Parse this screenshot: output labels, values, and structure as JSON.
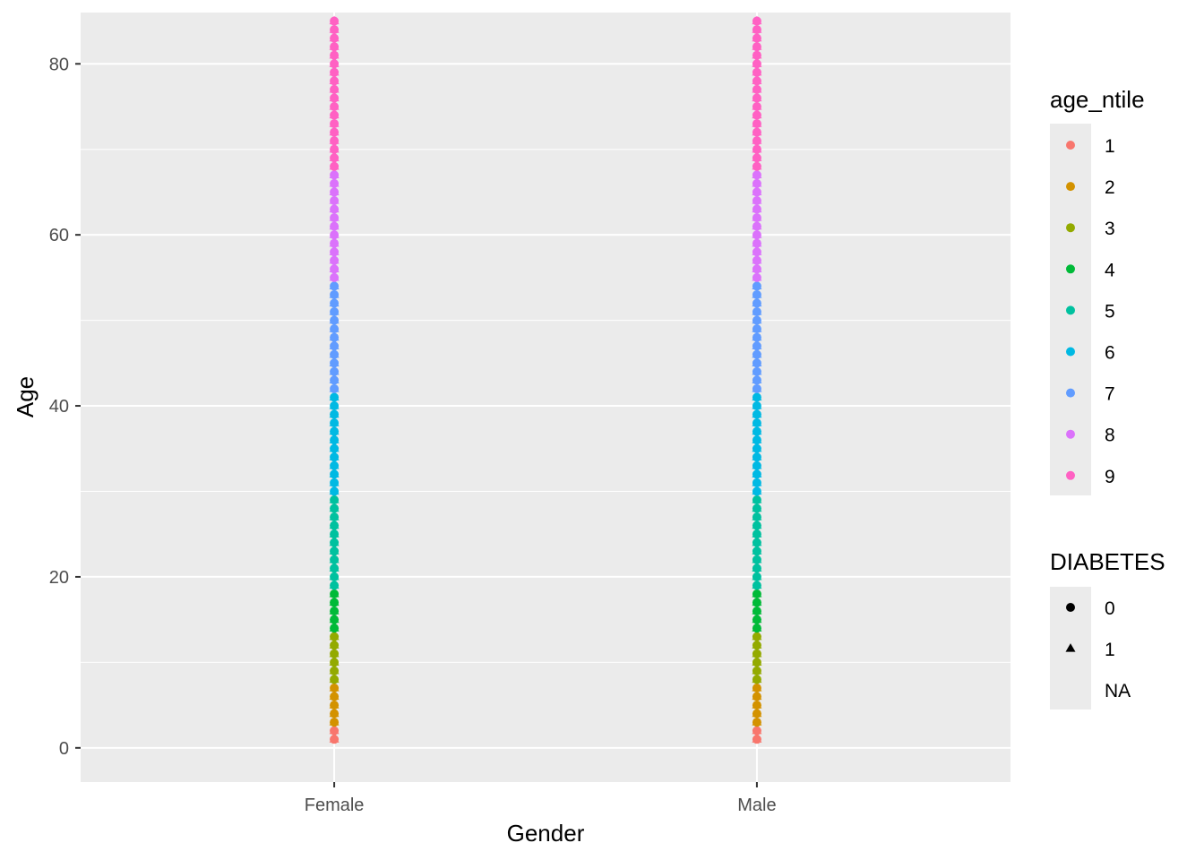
{
  "chart_data": {
    "type": "scatter",
    "title": "",
    "xlabel": "Gender",
    "ylabel": "Age",
    "categories": [
      "Female",
      "Male"
    ],
    "ylim": [
      -4,
      86
    ],
    "yticks": [
      0,
      20,
      40,
      60,
      80
    ],
    "ytick_labels": [
      "0",
      "20",
      "40",
      "60",
      "80"
    ],
    "grid": true,
    "x_range": [
      1,
      85
    ],
    "ntile_ranges": [
      {
        "ntile": "1",
        "min": 1,
        "max": 2
      },
      {
        "ntile": "2",
        "min": 3,
        "max": 7
      },
      {
        "ntile": "3",
        "min": 8,
        "max": 13
      },
      {
        "ntile": "4",
        "min": 14,
        "max": 18
      },
      {
        "ntile": "5",
        "min": 19,
        "max": 29
      },
      {
        "ntile": "6",
        "min": 30,
        "max": 41
      },
      {
        "ntile": "7",
        "min": 42,
        "max": 54
      },
      {
        "ntile": "8",
        "min": 55,
        "max": 67
      },
      {
        "ntile": "9",
        "min": 68,
        "max": 85
      }
    ],
    "legend_placement": "right",
    "legends": [
      {
        "title": "age_ntile",
        "items": [
          {
            "label": "1",
            "color": "#F8766D"
          },
          {
            "label": "2",
            "color": "#D39200"
          },
          {
            "label": "3",
            "color": "#93AA00"
          },
          {
            "label": "4",
            "color": "#00BA38"
          },
          {
            "label": "5",
            "color": "#00C19F"
          },
          {
            "label": "6",
            "color": "#00B9E3"
          },
          {
            "label": "7",
            "color": "#619CFF"
          },
          {
            "label": "8",
            "color": "#DB72FB"
          },
          {
            "label": "9",
            "color": "#FF61C3"
          }
        ]
      },
      {
        "title": "DIABETES",
        "items": [
          {
            "label": "0",
            "shape": "circle"
          },
          {
            "label": "1",
            "shape": "triangle"
          },
          {
            "label": "NA",
            "shape": "none"
          }
        ]
      }
    ],
    "colors": {
      "panel_bg": "#EBEBEB",
      "grid": "#FFFFFF",
      "legend_key_bg": "#EBEBEB"
    }
  }
}
